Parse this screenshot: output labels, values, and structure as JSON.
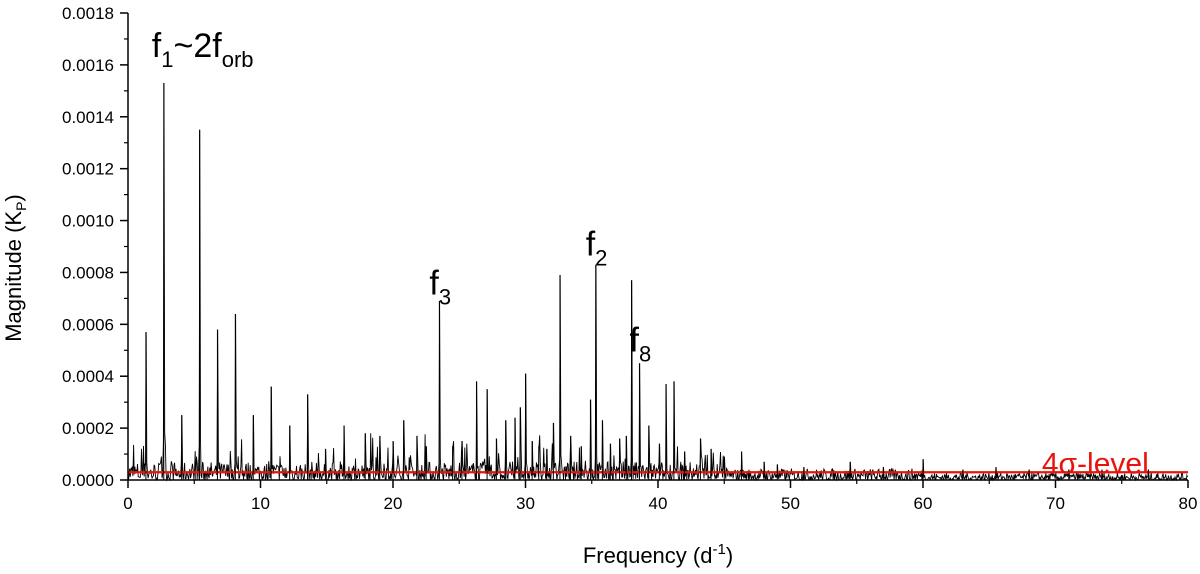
{
  "chart_data": {
    "type": "line",
    "title": "",
    "xlabel": {
      "main": "Frequency (d",
      "sup": "-1",
      "end": ")"
    },
    "ylabel": {
      "main": "Magnitude (K",
      "sub": "P",
      "end": ")"
    },
    "xlim": [
      0,
      80
    ],
    "ylim": [
      0,
      0.0018
    ],
    "x_ticks": [
      0,
      10,
      20,
      30,
      40,
      50,
      60,
      70,
      80
    ],
    "x_tick_labels": [
      "0",
      "10",
      "20",
      "30",
      "40",
      "50",
      "60",
      "70",
      "80"
    ],
    "y_ticks": [
      0,
      0.0002,
      0.0004,
      0.0006,
      0.0008,
      0.001,
      0.0012,
      0.0014,
      0.0016,
      0.0018
    ],
    "y_tick_labels": [
      "0.0000",
      "0.0002",
      "0.0004",
      "0.0006",
      "0.0008",
      "0.0010",
      "0.0012",
      "0.0014",
      "0.0016",
      "0.0018"
    ],
    "grid": false,
    "line_color": "#000000",
    "threshold": {
      "value": 3e-05,
      "color": "#e8140c"
    },
    "annotations": [
      {
        "x": 2.7,
        "y": 0.00165,
        "main": "f",
        "sub": "1",
        "rest_main": "~2f",
        "rest_sub": "orb"
      },
      {
        "x": 35.3,
        "y": 0.00088,
        "main": "f",
        "sub": "2"
      },
      {
        "x": 23.5,
        "y": 0.00073,
        "main": "f",
        "sub": "3"
      },
      {
        "x": 38.6,
        "y": 0.00051,
        "main": "f",
        "sub": "8"
      },
      {
        "x": 73.0,
        "y": 4e-05,
        "text": "4σ-level",
        "color": "#e8140c"
      }
    ],
    "peaks": [
      {
        "x": 1.35,
        "y": 0.00057
      },
      {
        "x": 2.7,
        "y": 0.00153
      },
      {
        "x": 4.05,
        "y": 0.00025
      },
      {
        "x": 5.4,
        "y": 0.00135
      },
      {
        "x": 6.75,
        "y": 0.00058
      },
      {
        "x": 8.1,
        "y": 0.00064
      },
      {
        "x": 9.45,
        "y": 0.00025
      },
      {
        "x": 10.8,
        "y": 0.00036
      },
      {
        "x": 12.2,
        "y": 0.00021
      },
      {
        "x": 13.55,
        "y": 0.00033
      },
      {
        "x": 14.9,
        "y": 0.00012
      },
      {
        "x": 16.3,
        "y": 0.00021
      },
      {
        "x": 17.9,
        "y": 0.00018
      },
      {
        "x": 19.0,
        "y": 0.00017
      },
      {
        "x": 20.0,
        "y": 0.00015
      },
      {
        "x": 20.8,
        "y": 0.00023
      },
      {
        "x": 21.8,
        "y": 0.00017
      },
      {
        "x": 22.5,
        "y": 0.00013
      },
      {
        "x": 23.5,
        "y": 0.00069
      },
      {
        "x": 24.5,
        "y": 0.00013
      },
      {
        "x": 25.2,
        "y": 0.00015
      },
      {
        "x": 26.3,
        "y": 0.00038
      },
      {
        "x": 27.1,
        "y": 0.00035
      },
      {
        "x": 27.8,
        "y": 0.00016
      },
      {
        "x": 28.5,
        "y": 0.00023
      },
      {
        "x": 29.2,
        "y": 0.00024
      },
      {
        "x": 29.6,
        "y": 0.00028
      },
      {
        "x": 30.0,
        "y": 0.00041
      },
      {
        "x": 30.5,
        "y": 0.00015
      },
      {
        "x": 31.0,
        "y": 0.00013
      },
      {
        "x": 31.6,
        "y": 0.00012
      },
      {
        "x": 32.1,
        "y": 0.00022
      },
      {
        "x": 32.6,
        "y": 0.00079
      },
      {
        "x": 33.4,
        "y": 0.00017
      },
      {
        "x": 34.2,
        "y": 0.00013
      },
      {
        "x": 34.9,
        "y": 0.00031
      },
      {
        "x": 35.3,
        "y": 0.00083
      },
      {
        "x": 35.8,
        "y": 0.00023
      },
      {
        "x": 36.4,
        "y": 0.00014
      },
      {
        "x": 37.1,
        "y": 0.00016
      },
      {
        "x": 37.6,
        "y": 0.00017
      },
      {
        "x": 38.0,
        "y": 0.00077
      },
      {
        "x": 38.6,
        "y": 0.00045
      },
      {
        "x": 39.3,
        "y": 0.00021
      },
      {
        "x": 40.1,
        "y": 0.00014
      },
      {
        "x": 40.6,
        "y": 0.00037
      },
      {
        "x": 41.2,
        "y": 0.00038
      },
      {
        "x": 42.0,
        "y": 0.00011
      },
      {
        "x": 43.2,
        "y": 0.00016
      },
      {
        "x": 44.0,
        "y": 0.00012
      },
      {
        "x": 45.0,
        "y": 9e-05
      },
      {
        "x": 46.3,
        "y": 0.00011
      },
      {
        "x": 48.0,
        "y": 7e-05
      },
      {
        "x": 49.0,
        "y": 6e-05
      },
      {
        "x": 51.0,
        "y": 5e-05
      },
      {
        "x": 54.5,
        "y": 7e-05
      },
      {
        "x": 57.0,
        "y": 5e-05
      },
      {
        "x": 60.0,
        "y": 8e-05
      },
      {
        "x": 63.0,
        "y": 4e-05
      },
      {
        "x": 65.5,
        "y": 5e-05
      },
      {
        "x": 68.0,
        "y": 4e-05
      },
      {
        "x": 71.0,
        "y": 4e-05
      },
      {
        "x": 73.5,
        "y": 4e-05
      },
      {
        "x": 77.0,
        "y": 4e-05
      }
    ]
  }
}
